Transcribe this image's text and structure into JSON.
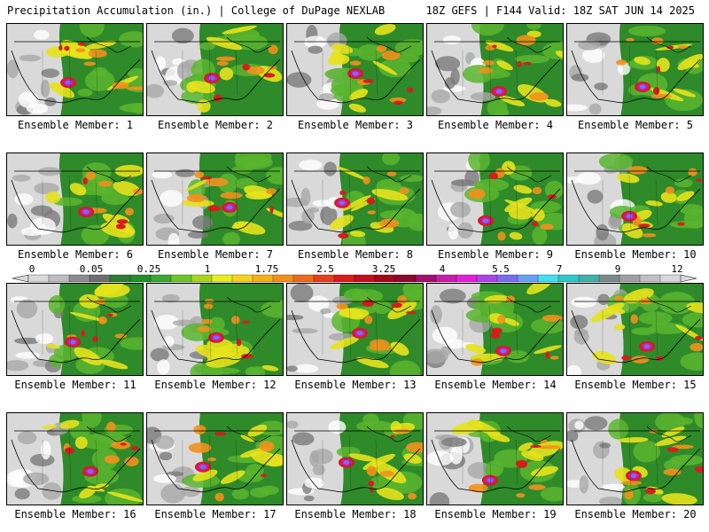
{
  "header": {
    "title": "Precipitation Accumulation (in.) | College of DuPage NEXLAB",
    "valid": "18Z GEFS | F144 Valid: 18Z SAT JUN 14 2025"
  },
  "members": [
    {
      "label": "Ensemble Member: 1"
    },
    {
      "label": "Ensemble Member: 2"
    },
    {
      "label": "Ensemble Member: 3"
    },
    {
      "label": "Ensemble Member: 4"
    },
    {
      "label": "Ensemble Member: 5"
    },
    {
      "label": "Ensemble Member: 6"
    },
    {
      "label": "Ensemble Member: 7"
    },
    {
      "label": "Ensemble Member: 8"
    },
    {
      "label": "Ensemble Member: 9"
    },
    {
      "label": "Ensemble Member: 10"
    },
    {
      "label": "Ensemble Member: 11"
    },
    {
      "label": "Ensemble Member: 12"
    },
    {
      "label": "Ensemble Member: 13"
    },
    {
      "label": "Ensemble Member: 14"
    },
    {
      "label": "Ensemble Member: 15"
    },
    {
      "label": "Ensemble Member: 16"
    },
    {
      "label": "Ensemble Member: 17"
    },
    {
      "label": "Ensemble Member: 18"
    },
    {
      "label": "Ensemble Member: 19"
    },
    {
      "label": "Ensemble Member: 20"
    }
  ],
  "legend": {
    "tick_labels": [
      "0",
      "0.05",
      "0.25",
      "1",
      "1.75",
      "2.5",
      "3.25",
      "4",
      "5.5",
      "7",
      "9",
      "12"
    ],
    "colors": [
      "#d9d9d9",
      "#bdbdbd",
      "#8c8c8c",
      "#6e6e6e",
      "#2e7d32",
      "#1f8f2a",
      "#38a832",
      "#6cc62a",
      "#a6d61c",
      "#e6ee22",
      "#f6d21c",
      "#f6b01a",
      "#f2901c",
      "#ec6a1c",
      "#e4401c",
      "#d81c1c",
      "#c01020",
      "#a00818",
      "#880a2e",
      "#a0106e",
      "#c81ca8",
      "#e020d8",
      "#b040e8",
      "#7a6cf0",
      "#6aa0f4",
      "#40e0f0",
      "#30c8c8",
      "#40b0a8",
      "#7a8a8a",
      "#a0a0a0",
      "#c0c0c0",
      "#d8d8d8"
    ]
  },
  "palette": {
    "gray_light": "#d9d9d9",
    "gray_mid": "#a8a8a8",
    "gray_dark": "#7a7a7a",
    "green": "#2f8a2a",
    "green_light": "#59b52e",
    "yellow": "#e6e21c",
    "orange": "#f2901c",
    "red": "#d81c1c",
    "magenta": "#c81ca8",
    "blue": "#7a6cf0",
    "cyan": "#40e0f0"
  }
}
